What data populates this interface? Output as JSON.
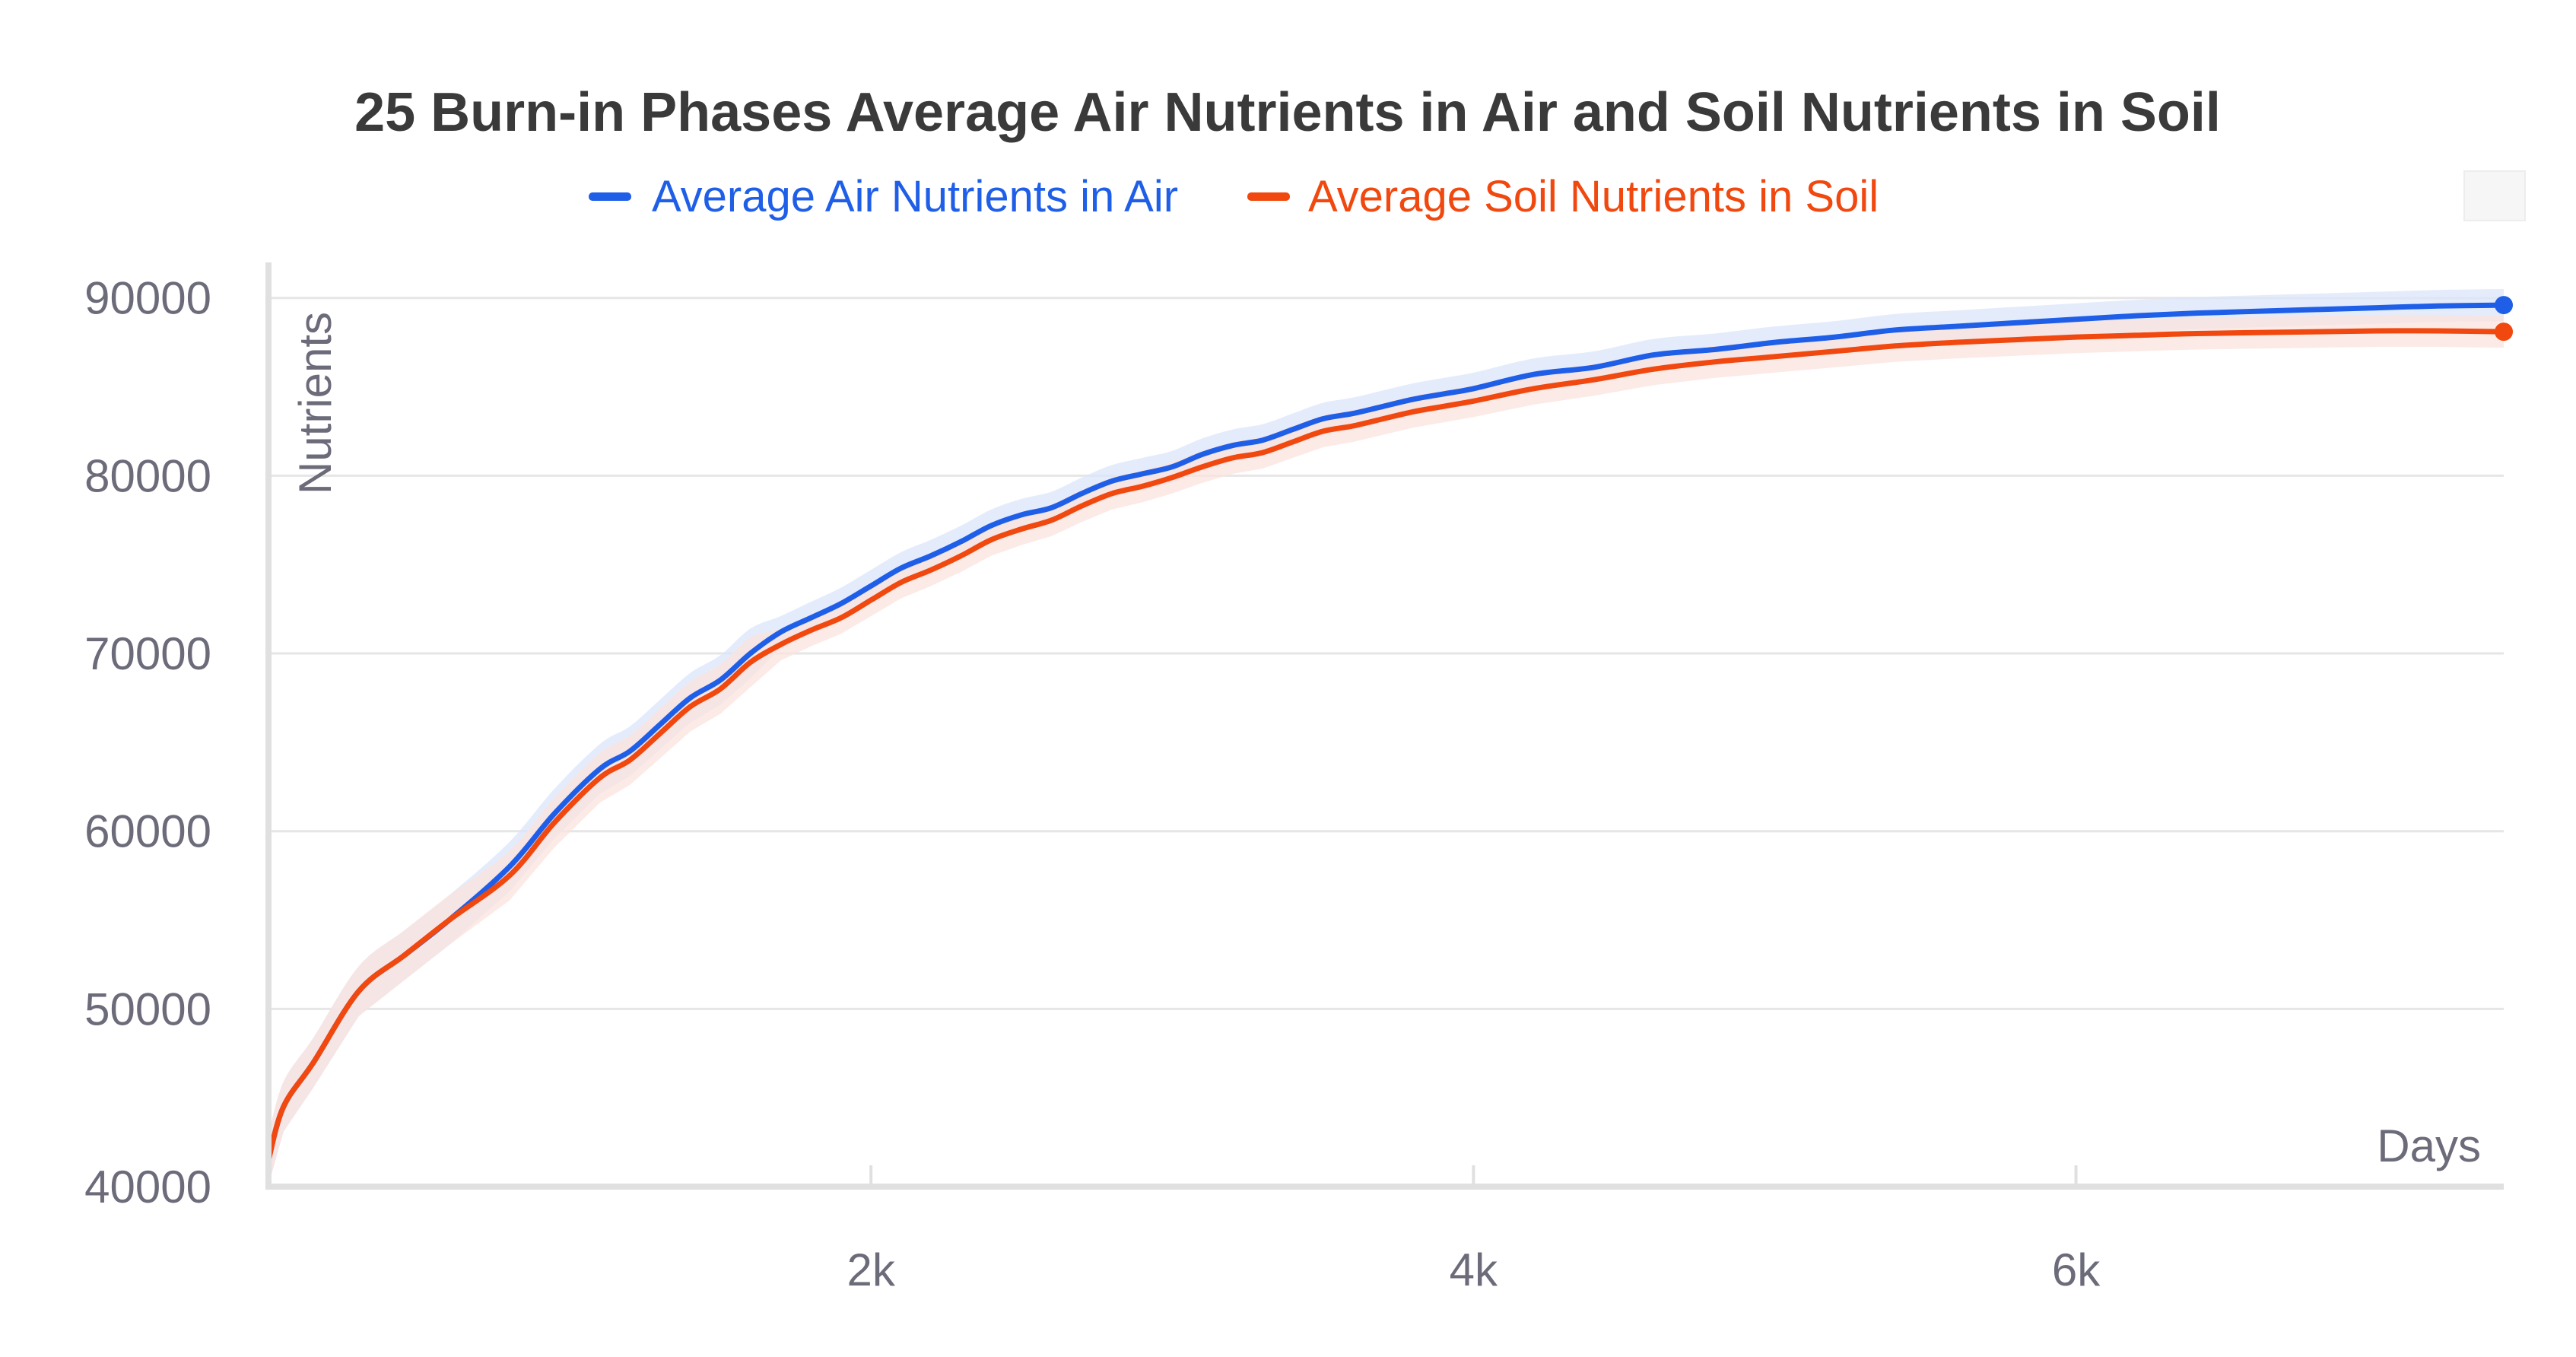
{
  "chart_data": {
    "type": "line",
    "title": "25 Burn-in Phases Average Air Nutrients in Air and Soil Nutrients in Soil",
    "xlabel": "Days",
    "ylabel": "Nutrients",
    "xlim": [
      0,
      7420
    ],
    "ylim": [
      40000,
      92000
    ],
    "x_ticks": [
      2000,
      4000,
      6000
    ],
    "x_tick_labels": [
      "2k",
      "4k",
      "6k"
    ],
    "y_ticks": [
      40000,
      50000,
      60000,
      70000,
      80000,
      90000
    ],
    "y_tick_labels": [
      "40000",
      "50000",
      "60000",
      "70000",
      "80000",
      "90000"
    ],
    "grid": true,
    "legend_position": "top",
    "series": [
      {
        "name": "Average Air Nutrients in Air",
        "color": "#1f5fe8",
        "band_color": "#dbe6fb",
        "x": [
          0,
          50,
          150,
          300,
          450,
          600,
          800,
          950,
          1100,
          1200,
          1300,
          1400,
          1500,
          1600,
          1700,
          1800,
          1900,
          2000,
          2100,
          2200,
          2300,
          2400,
          2500,
          2600,
          2700,
          2800,
          2900,
          3000,
          3100,
          3200,
          3300,
          3400,
          3500,
          3600,
          3700,
          3800,
          3900,
          4000,
          4200,
          4400,
          4600,
          4800,
          5000,
          5200,
          5400,
          5600,
          5800,
          6000,
          6200,
          6400,
          6600,
          6800,
          7000,
          7200,
          7420
        ],
        "y": [
          41500,
          44500,
          47000,
          51000,
          53000,
          55000,
          58000,
          61000,
          63500,
          64500,
          66000,
          67500,
          68500,
          70000,
          71200,
          72000,
          72800,
          73800,
          74800,
          75500,
          76300,
          77200,
          77800,
          78200,
          79000,
          79700,
          80100,
          80500,
          81200,
          81700,
          82000,
          82600,
          83200,
          83500,
          83900,
          84300,
          84600,
          84900,
          85700,
          86100,
          86800,
          87100,
          87500,
          87800,
          88200,
          88400,
          88600,
          88800,
          89000,
          89150,
          89250,
          89350,
          89450,
          89550,
          89600
        ]
      },
      {
        "name": "Average Soil Nutrients in Soil",
        "color": "#f0480f",
        "band_color": "#fbe3de",
        "x": [
          0,
          50,
          150,
          300,
          450,
          600,
          800,
          950,
          1100,
          1200,
          1300,
          1400,
          1500,
          1600,
          1700,
          1800,
          1900,
          2000,
          2100,
          2200,
          2300,
          2400,
          2500,
          2600,
          2700,
          2800,
          2900,
          3000,
          3100,
          3200,
          3300,
          3400,
          3500,
          3600,
          3700,
          3800,
          3900,
          4000,
          4200,
          4400,
          4600,
          4800,
          5000,
          5200,
          5400,
          5600,
          5800,
          6000,
          6200,
          6400,
          6600,
          6800,
          7000,
          7200,
          7420
        ],
        "y": [
          41500,
          44500,
          47000,
          51000,
          53000,
          55000,
          57500,
          60500,
          63000,
          64000,
          65500,
          67000,
          68000,
          69500,
          70500,
          71300,
          72000,
          73000,
          74000,
          74700,
          75500,
          76400,
          77000,
          77500,
          78300,
          79000,
          79400,
          79900,
          80500,
          81000,
          81300,
          81900,
          82500,
          82800,
          83200,
          83600,
          83900,
          84200,
          84900,
          85400,
          86000,
          86400,
          86700,
          87000,
          87300,
          87500,
          87650,
          87800,
          87900,
          88000,
          88050,
          88100,
          88150,
          88150,
          88100
        ]
      }
    ]
  }
}
